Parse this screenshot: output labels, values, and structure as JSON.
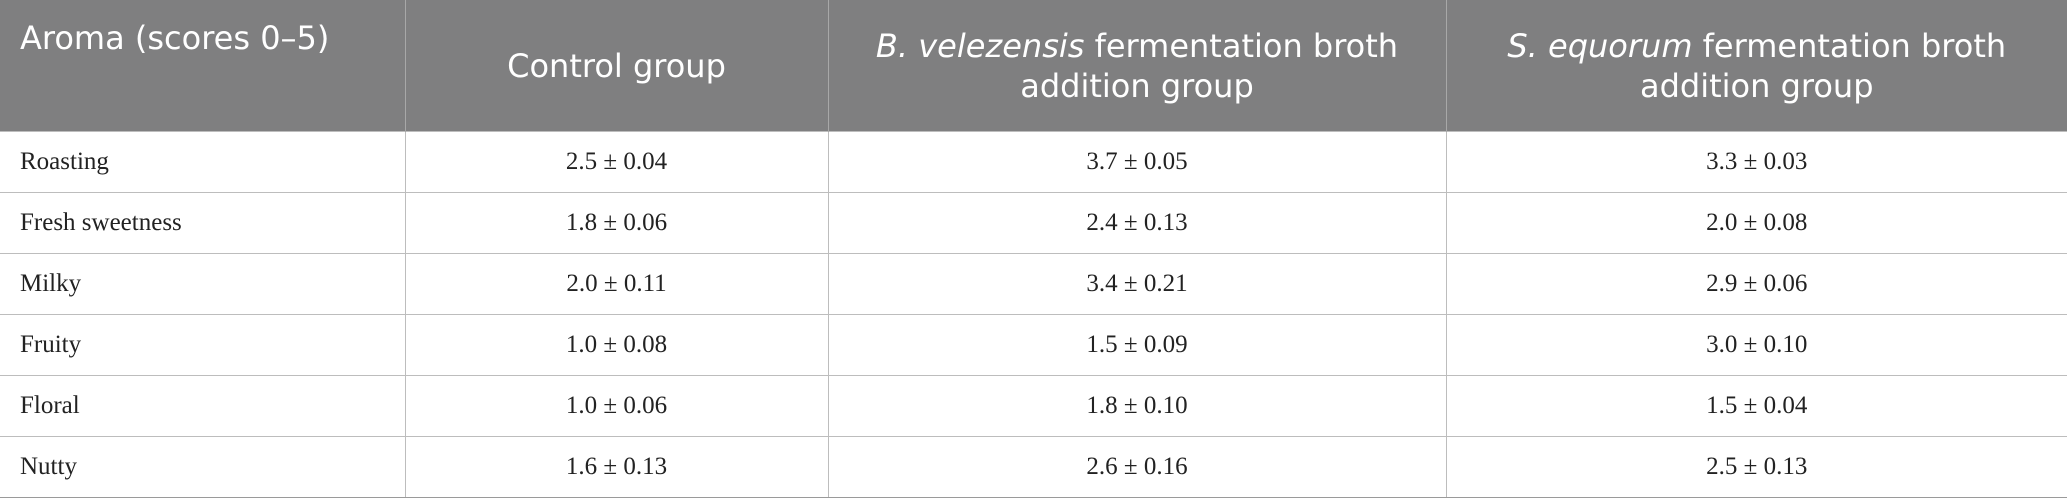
{
  "table": {
    "header": [
      [
        {
          "text": "Aroma (scores 0–5)",
          "italic": false
        }
      ],
      [
        {
          "text": "Control group",
          "italic": false
        }
      ],
      [
        {
          "text": "B. velezensis",
          "italic": true
        },
        {
          "text": " fermentation broth addition group",
          "italic": false
        }
      ],
      [
        {
          "text": "S. equorum",
          "italic": true
        },
        {
          "text": " fermentation broth addition group",
          "italic": false
        }
      ]
    ],
    "rows": [
      [
        "Roasting",
        "2.5 ± 0.04",
        "3.7 ± 0.05",
        "3.3 ± 0.03"
      ],
      [
        "Fresh sweetness",
        "1.8 ± 0.06",
        "2.4 ± 0.13",
        "2.0 ± 0.08"
      ],
      [
        "Milky",
        "2.0 ± 0.11",
        "3.4 ± 0.21",
        "2.9 ± 0.06"
      ],
      [
        "Fruity",
        "1.0 ± 0.08",
        "1.5 ± 0.09",
        "3.0 ± 0.10"
      ],
      [
        "Floral",
        "1.0 ± 0.06",
        "1.8 ± 0.10",
        "1.5 ± 0.04"
      ],
      [
        "Nutty",
        "1.6 ± 0.13",
        "2.6 ± 0.16",
        "2.5 ± 0.13"
      ]
    ]
  }
}
